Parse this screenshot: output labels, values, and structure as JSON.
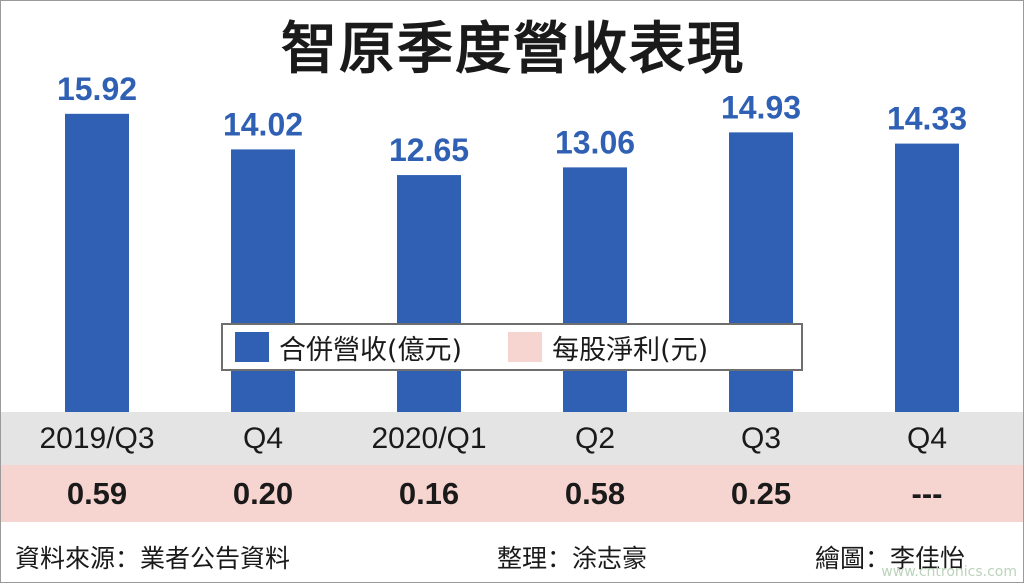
{
  "title": "智原季度營收表現",
  "chart_data": {
    "type": "bar",
    "title": "智原季度營收表現",
    "categories": [
      "2019/Q3",
      "Q4",
      "2020/Q1",
      "Q2",
      "Q3",
      "Q4"
    ],
    "series": [
      {
        "name": "合併營收(億元)",
        "values": [
          15.92,
          14.02,
          12.65,
          13.06,
          14.93,
          14.33
        ],
        "color": "#3060b4"
      },
      {
        "name": "每股淨利(元)",
        "values": [
          0.59,
          0.2,
          0.16,
          0.58,
          0.25,
          null
        ],
        "display": [
          "0.59",
          "0.20",
          "0.16",
          "0.58",
          "0.25",
          "---"
        ],
        "color": "#f6d4cf"
      }
    ],
    "ylim": [
      0,
      16.5
    ],
    "grid": false,
    "legend_position": "center"
  },
  "legend": {
    "revenue_label": "合併營收(億元)",
    "eps_label": "每股淨利(元)"
  },
  "footer": {
    "source": "資料來源：業者公告資料",
    "editor": "整理：涂志豪",
    "artist": "繪圖：李佳怡"
  },
  "watermark": "www.cntronics.com",
  "colors": {
    "bar": "#3060b4",
    "label": "#3060b4",
    "category_band": "#e4e4e4",
    "eps_band": "#f6d4cf"
  }
}
